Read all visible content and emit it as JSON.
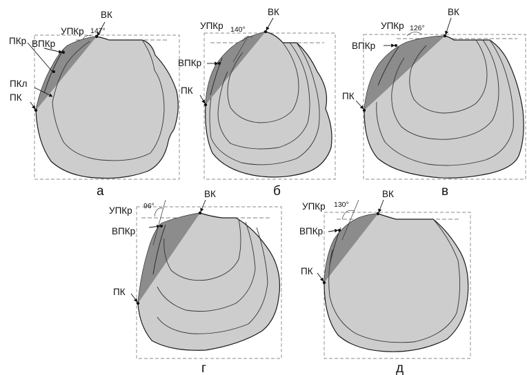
{
  "panels": [
    {
      "caption": "а",
      "labels": {
        "vk": "ВК",
        "upkr": "УПКр",
        "angle": "147°",
        "pkr": "ПКр",
        "vpkr": "ВПКр",
        "pkl": "ПКл",
        "pk": "ПК"
      }
    },
    {
      "caption": "б",
      "labels": {
        "vk": "ВК",
        "upkr": "УПКр",
        "angle": "140°",
        "vpkr": "ВПКр",
        "pk": "ПК"
      }
    },
    {
      "caption": "в",
      "labels": {
        "vk": "ВК",
        "upkr": "УПКр",
        "angle": "126°",
        "vpkr": "ВПКр",
        "pk": "ПК"
      }
    },
    {
      "caption": "г",
      "labels": {
        "vk": "ВК",
        "upkr": "УПКр",
        "angle": "96°",
        "vpkr": "ВПКр",
        "pk": "ПК"
      }
    },
    {
      "caption": "д",
      "labels": {
        "vk": "ВК",
        "upkr": "УПКр",
        "angle": "130°",
        "vpkr": "ВПКр",
        "pk": "ПК"
      }
    }
  ]
}
